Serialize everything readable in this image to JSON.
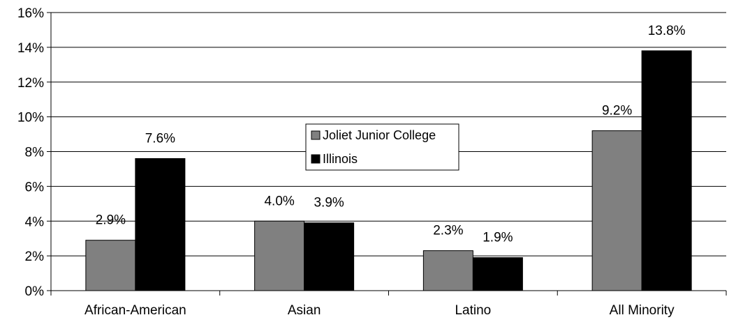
{
  "chart_data": {
    "type": "bar",
    "title": "",
    "xlabel": "",
    "ylabel": "",
    "categories": [
      "African-American",
      "Asian",
      "Latino",
      "All Minority"
    ],
    "series": [
      {
        "name": "Joliet Junior College",
        "color": "#808080",
        "values": [
          2.9,
          4.0,
          2.3,
          9.2
        ],
        "labels": [
          "2.9%",
          "4.0%",
          "2.3%",
          "9.2%"
        ]
      },
      {
        "name": "Illinois",
        "color": "#000000",
        "values": [
          7.6,
          3.9,
          1.9,
          13.8
        ],
        "labels": [
          "7.6%",
          "3.9%",
          "1.9%",
          "13.8%"
        ]
      }
    ],
    "ylim": [
      0,
      16
    ],
    "yticks": [
      0,
      2,
      4,
      6,
      8,
      10,
      12,
      14,
      16
    ],
    "ytick_labels": [
      "0%",
      "2%",
      "4%",
      "6%",
      "8%",
      "10%",
      "12%",
      "14%",
      "16%"
    ],
    "grid": true,
    "legend_position": "center"
  }
}
